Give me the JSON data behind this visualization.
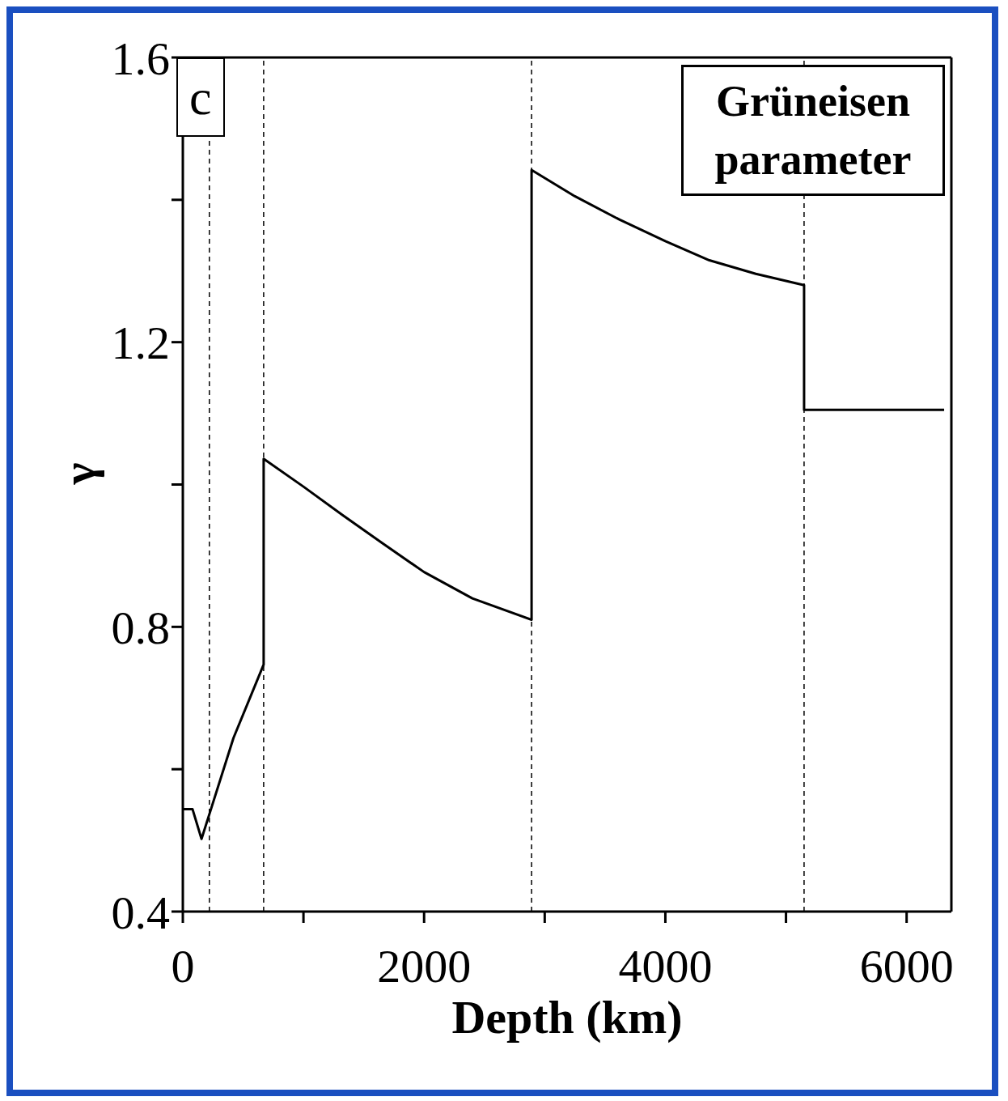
{
  "chart_data": {
    "type": "line",
    "xlabel": "Depth (km)",
    "ylabel": "γ",
    "annotations": [
      "c",
      "Grüneisen parameter"
    ],
    "series": [
      {
        "color": "#000000",
        "x": [
          0,
          80,
          155,
          420,
          670,
          670,
          1000,
          1324,
          1650,
          2000,
          2400,
          2891,
          2891,
          3250,
          3622,
          4000,
          4365,
          4750,
          5150,
          5150,
          6311
        ],
        "values": [
          0.544,
          0.544,
          0.502,
          0.644,
          0.747,
          1.036,
          0.997,
          0.957,
          0.918,
          0.877,
          0.84,
          0.81,
          1.442,
          1.405,
          1.372,
          1.342,
          1.315,
          1.296,
          1.28,
          1.105,
          1.105
        ]
      }
    ],
    "xlim": [
      0,
      6371
    ],
    "xticks": [
      0,
      {
        "value": 1000,
        "label": null
      },
      2000,
      {
        "value": 3000,
        "label": null
      },
      4000,
      {
        "value": 5000,
        "label": null
      },
      6000
    ],
    "ylim": [
      0.4,
      1.6
    ],
    "yticks": [
      0.4,
      {
        "value": 0.6,
        "label": null
      },
      0.8,
      {
        "value": 1.0,
        "label": null
      },
      1.2,
      {
        "value": 1.4,
        "label": null
      },
      1.6
    ],
    "ref_lines": [
      {
        "axis": "x",
        "value": 220,
        "line_style": "dashed",
        "color": "#000000"
      },
      {
        "axis": "x",
        "value": 670,
        "line_style": "dashed",
        "color": "#000000"
      },
      {
        "axis": "x",
        "value": 2891,
        "line_style": "dashed",
        "color": "#000000"
      },
      {
        "axis": "x",
        "value": 5150,
        "line_style": "dashed",
        "color": "#000000"
      }
    ],
    "grid": false,
    "marker": "none",
    "line_style": "solid"
  }
}
